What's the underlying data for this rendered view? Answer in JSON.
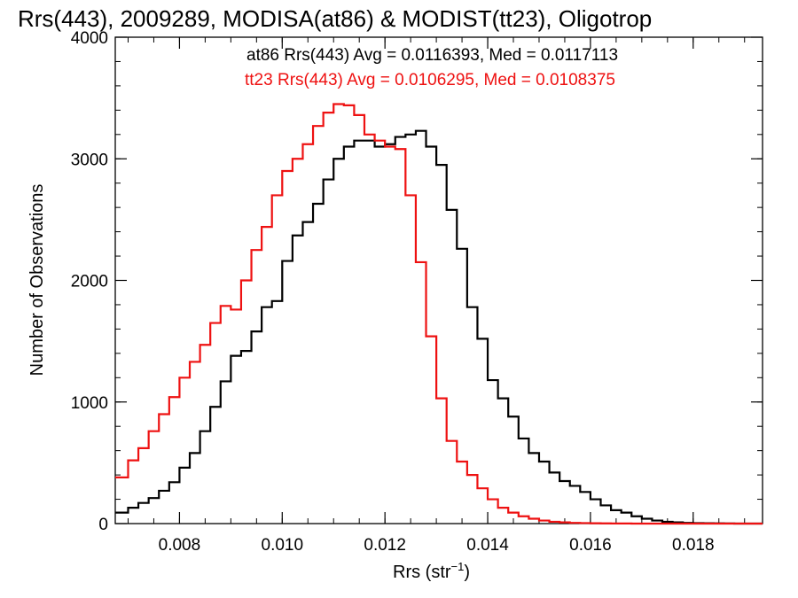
{
  "chart_data": {
    "type": "line",
    "title": "Rrs(443), 2009289, MODISA(at86) & MODIST(tt23), Oligotrop",
    "xlabel": "Rrs (str",
    "xlabel_sup": "−1",
    "xlabel_close": ")",
    "ylabel": "Number of Observations",
    "xlim": [
      0.00675,
      0.01935
    ],
    "ylim": [
      0,
      4000
    ],
    "x_ticks": [
      0.008,
      0.01,
      0.012,
      0.014,
      0.016,
      0.018
    ],
    "x_tick_labels": [
      "0.008",
      "0.010",
      "0.012",
      "0.014",
      "0.016",
      "0.018"
    ],
    "y_ticks": [
      0,
      1000,
      2000,
      3000,
      4000
    ],
    "y_tick_labels": [
      "0",
      "1000",
      "2000",
      "3000",
      "4000"
    ],
    "step": "histogram",
    "annotations": [
      {
        "text": "at86 Rrs(443) Avg = 0.0116393, Med = 0.0117113",
        "color": "#000000"
      },
      {
        "text": "tt23 Rrs(443) Avg = 0.0106295, Med = 0.0108375",
        "color": "#ee1111"
      }
    ],
    "series": [
      {
        "name": "at86",
        "color": "#000000",
        "x": [
          0.00675,
          0.007,
          0.0072,
          0.0074,
          0.0076,
          0.0078,
          0.008,
          0.0082,
          0.0084,
          0.0086,
          0.0088,
          0.009,
          0.0092,
          0.0094,
          0.0096,
          0.0098,
          0.01,
          0.0102,
          0.0104,
          0.0106,
          0.0108,
          0.011,
          0.0112,
          0.0114,
          0.0116,
          0.0118,
          0.012,
          0.0122,
          0.0124,
          0.0126,
          0.0128,
          0.013,
          0.0132,
          0.0134,
          0.0136,
          0.0138,
          0.014,
          0.0142,
          0.0144,
          0.0146,
          0.0148,
          0.015,
          0.0152,
          0.0154,
          0.0156,
          0.0158,
          0.016,
          0.0162,
          0.0164,
          0.0166,
          0.0168,
          0.017,
          0.0172,
          0.0174,
          0.0176,
          0.0178,
          0.018,
          0.0182,
          0.0184,
          0.0186,
          0.0188,
          0.019,
          0.01935
        ],
        "y": [
          90,
          130,
          170,
          210,
          270,
          340,
          460,
          580,
          760,
          960,
          1170,
          1380,
          1420,
          1580,
          1780,
          1830,
          2160,
          2370,
          2480,
          2630,
          2830,
          3000,
          3100,
          3150,
          3150,
          3100,
          3120,
          3180,
          3200,
          3230,
          3100,
          2950,
          2580,
          2260,
          1780,
          1520,
          1180,
          1030,
          880,
          700,
          580,
          510,
          420,
          350,
          310,
          260,
          200,
          150,
          110,
          90,
          60,
          40,
          25,
          15,
          10,
          6,
          4,
          3,
          2,
          1,
          0,
          0,
          0
        ]
      },
      {
        "name": "tt23",
        "color": "#ee1111",
        "x": [
          0.00675,
          0.007,
          0.0072,
          0.0074,
          0.0076,
          0.0078,
          0.008,
          0.0082,
          0.0084,
          0.0086,
          0.0088,
          0.009,
          0.0092,
          0.0094,
          0.0096,
          0.0098,
          0.01,
          0.0102,
          0.0104,
          0.0106,
          0.0108,
          0.011,
          0.0112,
          0.0114,
          0.0116,
          0.0118,
          0.012,
          0.0122,
          0.0124,
          0.0126,
          0.0128,
          0.013,
          0.0132,
          0.0134,
          0.0136,
          0.0138,
          0.014,
          0.0142,
          0.0144,
          0.0146,
          0.0148,
          0.015,
          0.0152,
          0.0154,
          0.0156,
          0.0158,
          0.016,
          0.0162,
          0.0164,
          0.0166,
          0.0168,
          0.017,
          0.0172,
          0.0174,
          0.0176,
          0.0178,
          0.018,
          0.0182,
          0.0184,
          0.0186,
          0.0188,
          0.019,
          0.01935
        ],
        "y": [
          380,
          520,
          620,
          760,
          900,
          1040,
          1200,
          1330,
          1470,
          1650,
          1790,
          1760,
          2000,
          2250,
          2440,
          2700,
          2900,
          3000,
          3120,
          3270,
          3380,
          3450,
          3440,
          3360,
          3200,
          3150,
          3100,
          3080,
          2700,
          2150,
          1540,
          1030,
          680,
          510,
          400,
          290,
          200,
          130,
          90,
          60,
          40,
          25,
          15,
          10,
          6,
          4,
          3,
          2,
          1,
          1,
          0,
          0,
          0,
          0,
          0,
          0,
          0,
          0,
          0,
          0,
          0,
          0,
          0
        ]
      }
    ]
  }
}
